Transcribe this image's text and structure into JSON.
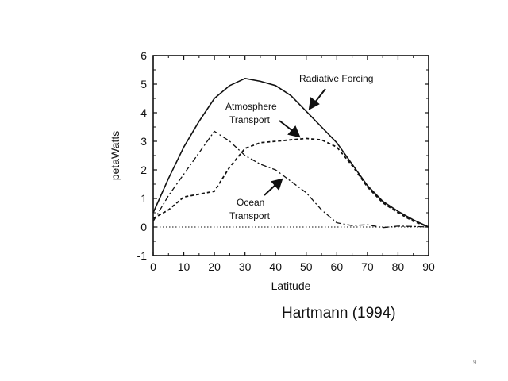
{
  "chart_data": {
    "type": "line",
    "xlabel": "Latitude",
    "ylabel": "petaWatts",
    "xlim": [
      0,
      90
    ],
    "ylim": [
      -1,
      6
    ],
    "xticks": [
      0,
      10,
      20,
      30,
      40,
      50,
      60,
      70,
      80,
      90
    ],
    "yticks": [
      -1,
      0,
      1,
      2,
      3,
      4,
      5,
      6
    ],
    "grid": false,
    "legend": "none",
    "series": [
      {
        "name": "Radiative Forcing",
        "style": "solid",
        "x": [
          0,
          5,
          10,
          15,
          20,
          25,
          30,
          35,
          40,
          45,
          50,
          55,
          60,
          65,
          70,
          75,
          80,
          85,
          90
        ],
        "y": [
          0.5,
          1.7,
          2.8,
          3.7,
          4.5,
          4.95,
          5.2,
          5.1,
          4.95,
          4.6,
          4.05,
          3.5,
          2.95,
          2.2,
          1.45,
          0.9,
          0.55,
          0.25,
          0.0
        ]
      },
      {
        "name": "Atmosphere Transport",
        "style": "dashed",
        "x": [
          0,
          5,
          10,
          15,
          20,
          25,
          30,
          35,
          40,
          45,
          50,
          55,
          60,
          65,
          70,
          75,
          80,
          85,
          90
        ],
        "y": [
          0.3,
          0.6,
          1.05,
          1.15,
          1.25,
          2.1,
          2.75,
          2.95,
          3.0,
          3.05,
          3.1,
          3.05,
          2.8,
          2.15,
          1.4,
          0.85,
          0.5,
          0.2,
          0.0
        ]
      },
      {
        "name": "Ocean Transport",
        "style": "dash-dot",
        "x": [
          0,
          5,
          10,
          15,
          20,
          25,
          30,
          35,
          40,
          45,
          50,
          55,
          60,
          65,
          70,
          75,
          80,
          85,
          90
        ],
        "y": [
          0.2,
          1.1,
          1.85,
          2.6,
          3.35,
          3.0,
          2.5,
          2.2,
          2.0,
          1.6,
          1.2,
          0.6,
          0.15,
          0.05,
          0.08,
          -0.02,
          0.03,
          0.02,
          0.0
        ]
      },
      {
        "name": "zero line",
        "style": "dotted",
        "x": [
          0,
          90
        ],
        "y": [
          0,
          0
        ]
      }
    ],
    "annotations": [
      {
        "lines": [
          "Radiative Forcing"
        ]
      },
      {
        "lines": [
          "Atmosphere",
          "Transport"
        ]
      },
      {
        "lines": [
          "Ocean",
          "Transport"
        ]
      }
    ]
  },
  "citation": "Hartmann (1994)",
  "page_number": "9"
}
